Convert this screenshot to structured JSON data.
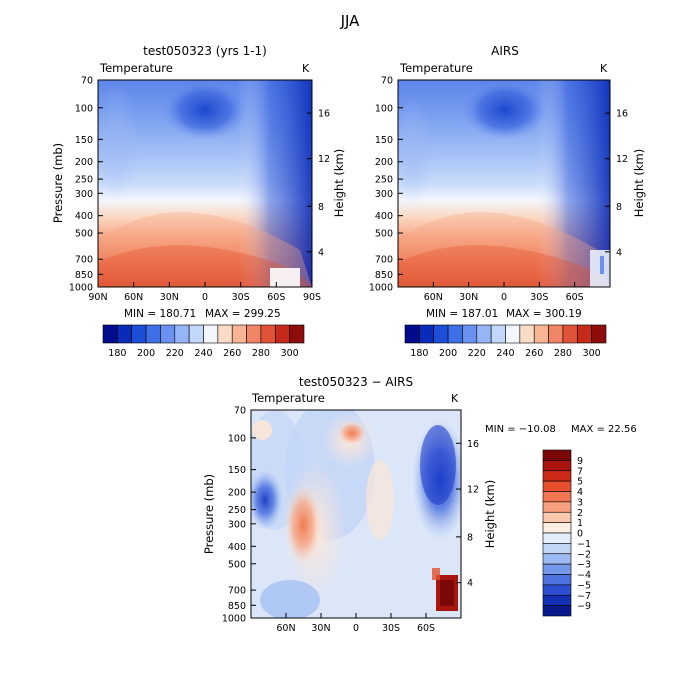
{
  "figure_title": "JJA",
  "chart_data": [
    {
      "type": "heatmap",
      "title": "test050323 (yrs 1-1)",
      "subtitle": "Temperature",
      "units": "K",
      "ylabel": "Pressure (mb)",
      "ylabel_right": "Height (km)",
      "y_ticks": [
        "70",
        "100",
        "150",
        "200",
        "250",
        "300",
        "400",
        "500",
        "700",
        "850",
        "1000"
      ],
      "height_ticks": [
        "16",
        "12",
        "8",
        "4"
      ],
      "x_ticks": [
        "90N",
        "60N",
        "30N",
        "0",
        "30S",
        "60S",
        "90S"
      ],
      "min_text": "MIN = 180.71",
      "max_text": "MAX = 299.25",
      "legend_labels": [
        "180",
        "190",
        "200",
        "210",
        "220",
        "230",
        "240",
        "250",
        "260",
        "270",
        "280",
        "290",
        "300"
      ],
      "legend_colors": [
        "#000c8c",
        "#0a2bb8",
        "#1d4ed8",
        "#3f6fe6",
        "#6a91f0",
        "#96b5f6",
        "#c3d7fa",
        "#f3f7fd",
        "#fbdcc7",
        "#f8b595",
        "#f08565",
        "#e05339",
        "#c62a1a",
        "#8e0c0c"
      ]
    },
    {
      "type": "heatmap",
      "title": "AIRS",
      "subtitle": "Temperature",
      "units": "K",
      "ylabel": "",
      "ylabel_right": "Height (km)",
      "y_ticks": [
        "70",
        "100",
        "150",
        "200",
        "250",
        "300",
        "400",
        "500",
        "700",
        "850",
        "1000"
      ],
      "height_ticks": [
        "16",
        "12",
        "8",
        "4"
      ],
      "x_ticks": [
        "60N",
        "30N",
        "0",
        "30S",
        "60S"
      ],
      "min_text": "MIN = 187.01",
      "max_text": "MAX = 300.19",
      "legend_labels": [
        "180",
        "190",
        "200",
        "210",
        "220",
        "230",
        "240",
        "250",
        "260",
        "270",
        "280",
        "290",
        "300"
      ],
      "legend_colors": [
        "#000c8c",
        "#0a2bb8",
        "#1d4ed8",
        "#3f6fe6",
        "#6a91f0",
        "#96b5f6",
        "#c3d7fa",
        "#f3f7fd",
        "#fbdcc7",
        "#f8b595",
        "#f08565",
        "#e05339",
        "#c62a1a",
        "#8e0c0c"
      ]
    },
    {
      "type": "heatmap",
      "title": "test050323 − AIRS",
      "subtitle": "Temperature",
      "units": "K",
      "ylabel": "Pressure (mb)",
      "ylabel_right": "Height (km)",
      "y_ticks": [
        "70",
        "100",
        "150",
        "200",
        "250",
        "300",
        "400",
        "500",
        "700",
        "850",
        "1000"
      ],
      "height_ticks": [
        "16",
        "12",
        "8",
        "4"
      ],
      "x_ticks": [
        "60N",
        "30N",
        "0",
        "30S",
        "60S"
      ],
      "min_text": "MIN = −10.08",
      "max_text": "MAX =  22.56",
      "legend_labels": [
        "9",
        "7",
        "5",
        "4",
        "3",
        "2",
        "1",
        "0",
        "−1",
        "−2",
        "−3",
        "−4",
        "−5",
        "−7",
        "−9"
      ],
      "legend_colors": [
        "#7a0808",
        "#a8150e",
        "#cc2b18",
        "#e6502d",
        "#f27650",
        "#f79f7f",
        "#fbc7ac",
        "#fdeee2",
        "#e2ecfa",
        "#c3d6f7",
        "#9dbaf2",
        "#7598ea",
        "#4e73df",
        "#2b4fd0",
        "#1430b4",
        "#0a1a8e"
      ]
    }
  ]
}
